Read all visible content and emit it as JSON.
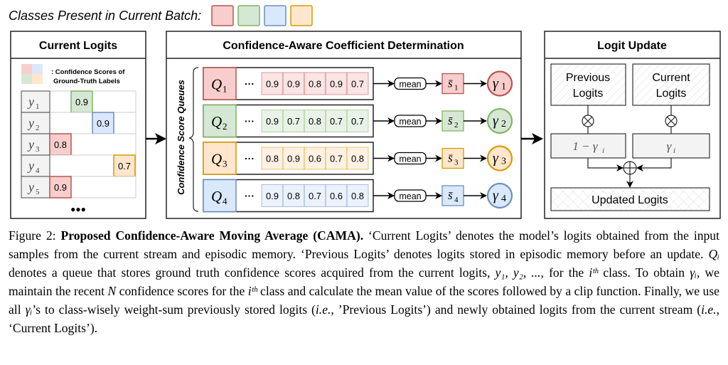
{
  "legend": {
    "label": "Classes Present in Current Batch:",
    "classes": [
      "red",
      "green",
      "blue",
      "orange"
    ]
  },
  "colors": {
    "red": {
      "fill": "#f8cecc",
      "stroke": "#b85450"
    },
    "green": {
      "fill": "#d5e8d4",
      "stroke": "#82b366"
    },
    "blue": {
      "fill": "#dae8fc",
      "stroke": "#6c8ebf"
    },
    "orange": {
      "fill": "#ffe6cc",
      "stroke": "#d79b00"
    }
  },
  "current_logits": {
    "title": "Current Logits",
    "key_text_1": ": Confidence Scores of",
    "key_text_2": "Ground-Truth Labels",
    "rows": [
      {
        "label": "y",
        "sub": "1",
        "col": 1,
        "value": "0.9",
        "color": "green"
      },
      {
        "label": "y",
        "sub": "2",
        "col": 2,
        "value": "0.9",
        "color": "blue"
      },
      {
        "label": "y",
        "sub": "3",
        "col": 0,
        "value": "0.8",
        "color": "red"
      },
      {
        "label": "y",
        "sub": "4",
        "col": 3,
        "value": "0.7",
        "color": "orange"
      },
      {
        "label": "y",
        "sub": "5",
        "col": 0,
        "value": "0.9",
        "color": "red"
      }
    ],
    "more": "●●●"
  },
  "coefficient": {
    "title": "Confidence-Aware Coefficient Determination",
    "side_label": "Confidence Score Queues",
    "ellipsis": "···",
    "mean_label": "mean",
    "queues": [
      {
        "q": "Q",
        "sub": "1",
        "color": "red",
        "values": [
          "0.9",
          "0.9",
          "0.8",
          "0.9",
          "0.7"
        ],
        "s": "s̄",
        "gamma": "γ"
      },
      {
        "q": "Q",
        "sub": "2",
        "color": "green",
        "values": [
          "0.9",
          "0.7",
          "0.8",
          "0.7",
          "0.7"
        ],
        "s": "s̄",
        "gamma": "γ"
      },
      {
        "q": "Q",
        "sub": "3",
        "color": "orange",
        "values": [
          "0.8",
          "0.9",
          "0.6",
          "0.7",
          "0.8"
        ],
        "s": "s̄",
        "gamma": "γ"
      },
      {
        "q": "Q",
        "sub": "4",
        "color": "blue",
        "values": [
          "0.9",
          "0.8",
          "0.7",
          "0.6",
          "0.8"
        ],
        "s": "s̄",
        "gamma": "γ"
      }
    ]
  },
  "logit_update": {
    "title": "Logit Update",
    "previous_1": "Previous",
    "previous_2": "Logits",
    "current_1": "Current",
    "current_2": "Logits",
    "one_minus_gamma": "1 − γ",
    "gamma": "γ",
    "gamma_sub": "i",
    "times": "⊗",
    "plus": "⊕",
    "updated": "Updated Logits"
  },
  "caption": {
    "figure_label": "Figure 2:",
    "bold_title": "Proposed Confidence-Aware Moving Average (CAMA).",
    "text_1": " ‘Current Logits’ denotes the model’s logits obtained from the input samples from the current stream and episodic memory. ‘Previous Logits’ denotes logits stored in episodic memory before an update. ",
    "math_qi": "Qᵢ",
    "text_2": " denotes a queue that stores ground truth confidence scores acquired from the current logits, ",
    "math_y": "y₁, y₂, ...,",
    "text_3": " for the ",
    "math_ith_1": "iᵗʰ",
    "text_4": " class. To obtain ",
    "math_gi_1": "γᵢ",
    "text_5": ", we maintain the recent ",
    "math_n": "N",
    "text_6": " confidence scores for the ",
    "math_ith_2": "iᵗʰ",
    "text_7": " class and calculate the mean value of the scores followed by a clip function. Finally, we use all ",
    "math_gi_2": "γᵢ",
    "text_8": "’s to class-wisely weight-sum previously stored logits (",
    "ie_1": "i.e.",
    "text_9": ", ’Previous Logits’) and newly obtained logits from the current stream (",
    "ie_2": "i.e.",
    "text_10": ", ‘Current Logits’)."
  }
}
